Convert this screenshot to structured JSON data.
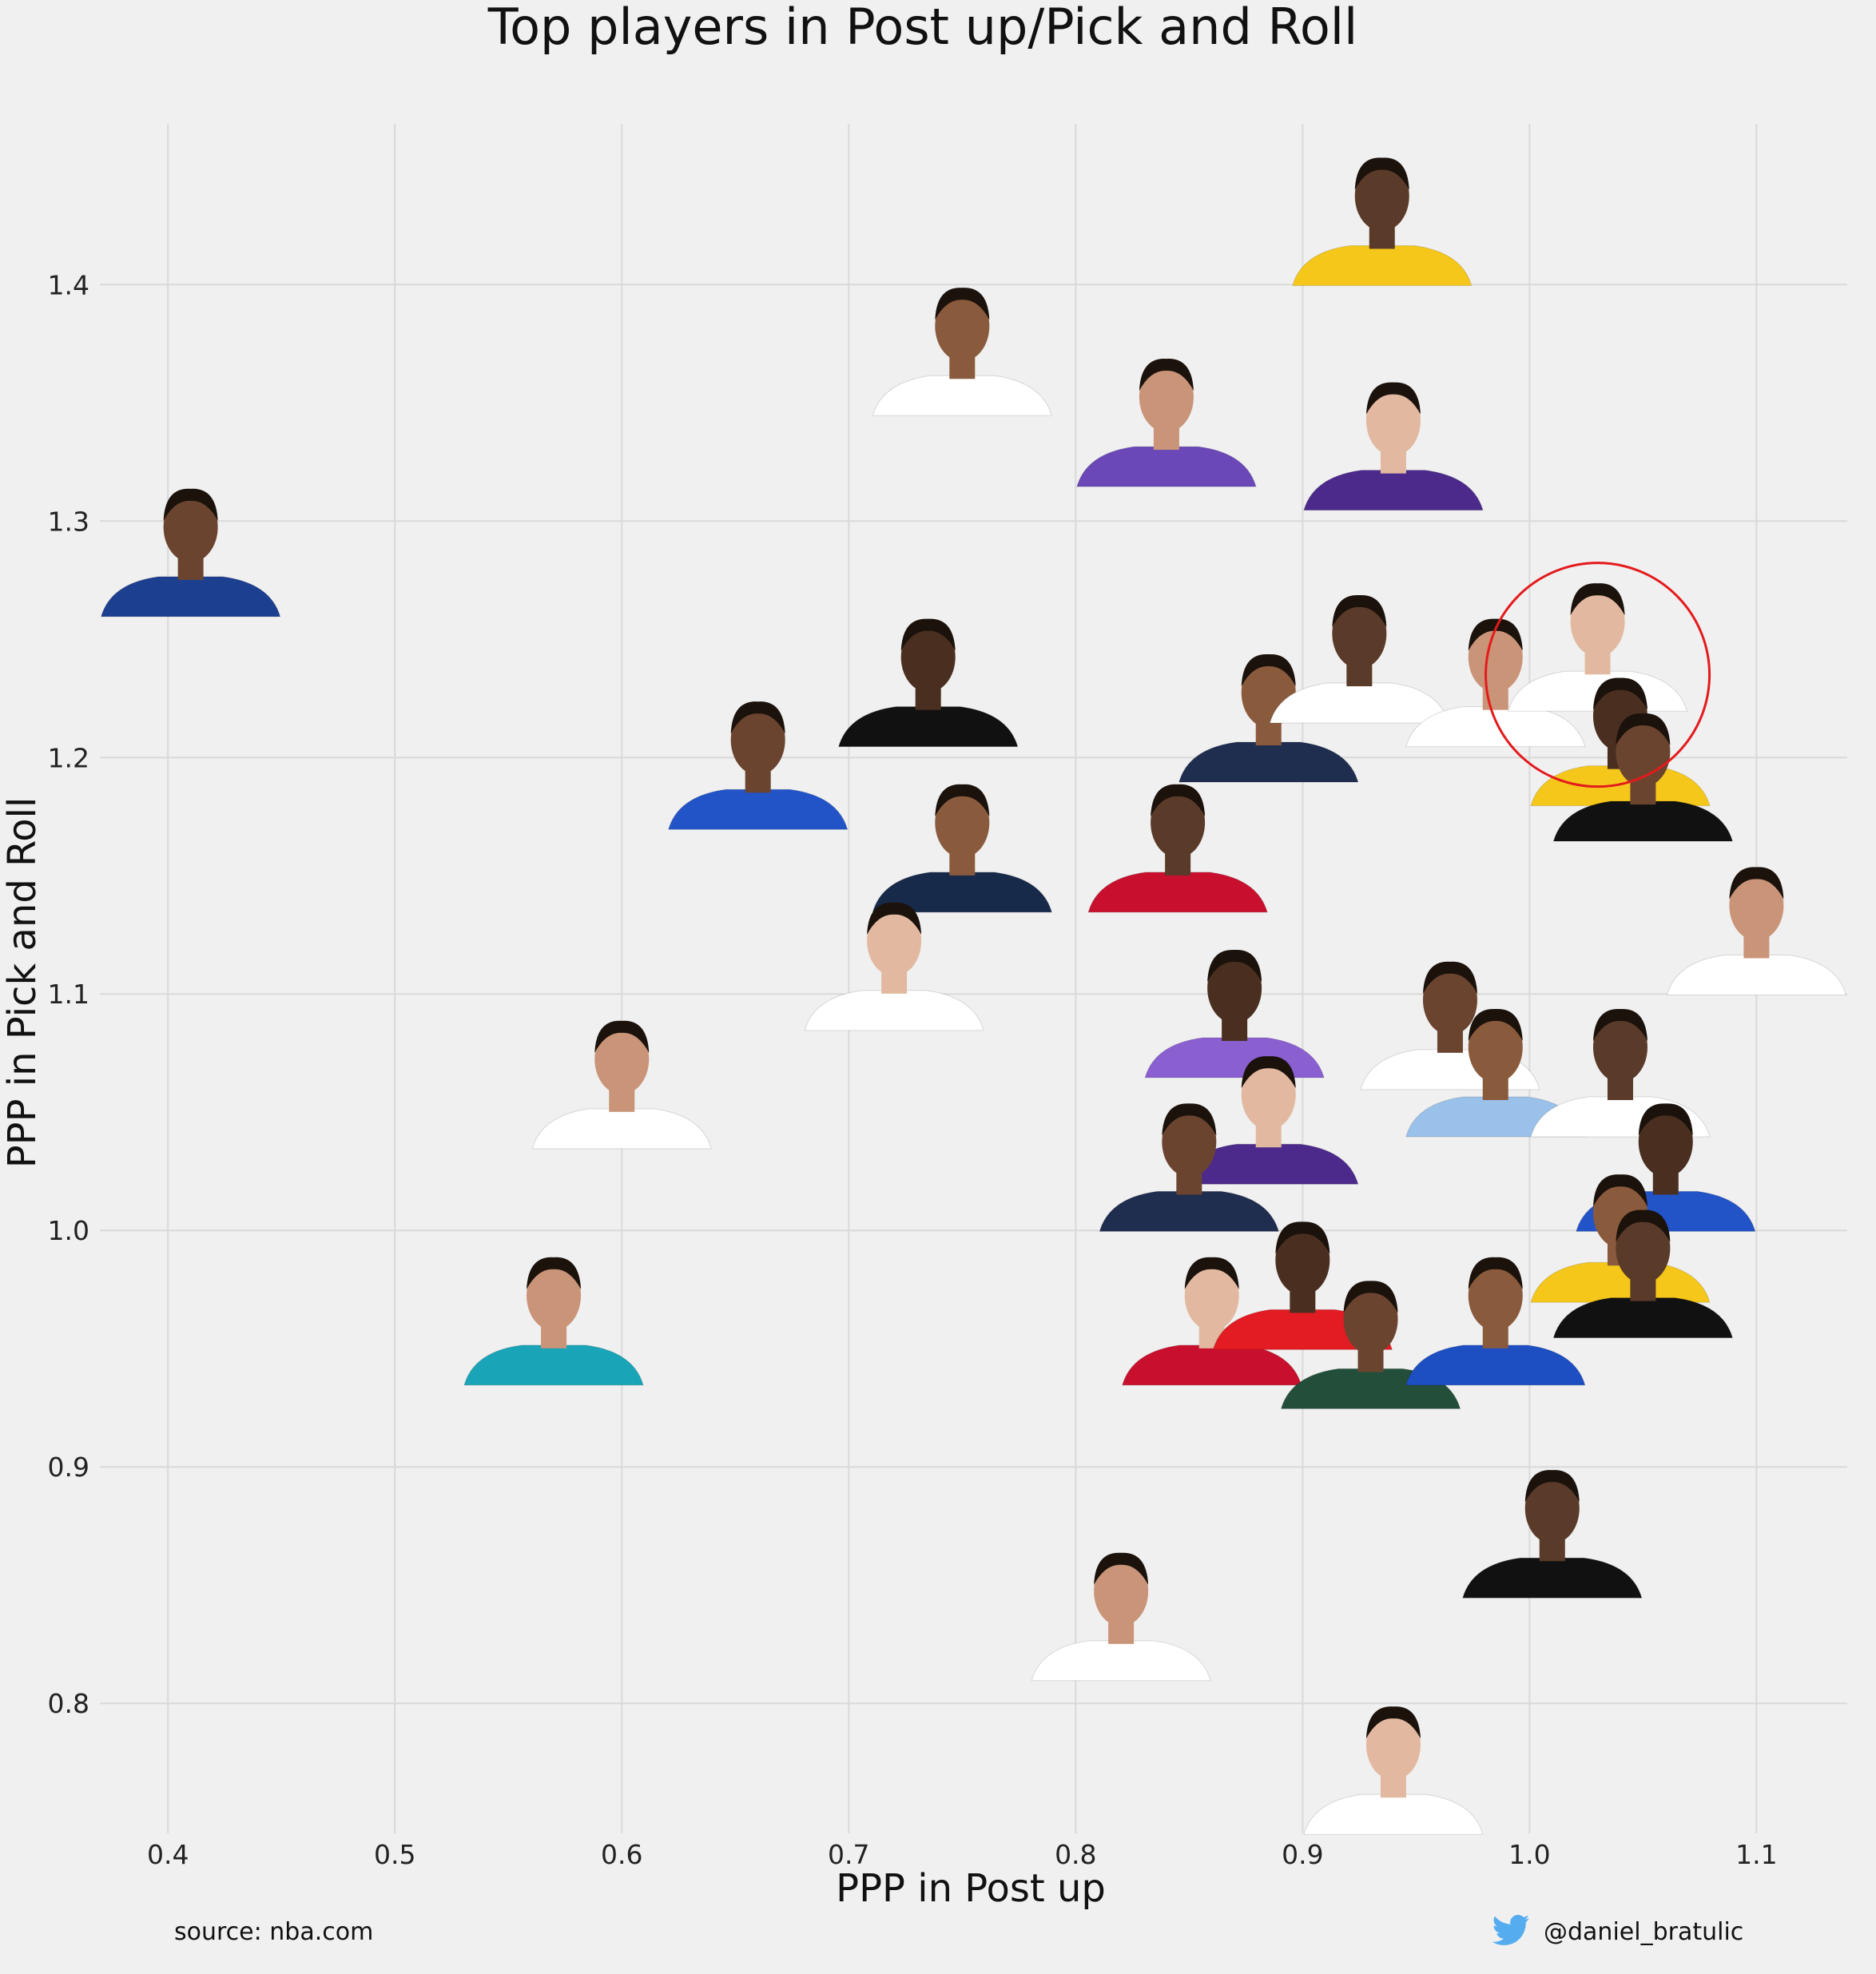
{
  "chart_data": {
    "type": "scatter",
    "title": "Top players in Post up/Pick and Roll",
    "xlabel": "PPP in Post up",
    "ylabel": "PPP in Pick and Roll",
    "xlim": [
      0.37,
      1.14
    ],
    "ylim": [
      0.745,
      1.468
    ],
    "xticks": [
      "0.4",
      "0.5",
      "0.6",
      "0.7",
      "0.8",
      "0.9",
      "1.0",
      "1.1"
    ],
    "yticks": [
      "0.8",
      "0.9",
      "1.0",
      "1.1",
      "1.2",
      "1.3",
      "1.4"
    ],
    "grid": true,
    "highlight": {
      "x": 1.03,
      "y": 1.235,
      "color": "#e41a1c"
    },
    "points": [
      {
        "x": 0.41,
        "y": 1.29,
        "jersey": "#1d3f8f"
      },
      {
        "x": 0.75,
        "y": 1.375,
        "jersey": "#ffffff"
      },
      {
        "x": 0.935,
        "y": 1.43,
        "jersey": "#f5c71a"
      },
      {
        "x": 0.84,
        "y": 1.345,
        "jersey": "#6a48b8"
      },
      {
        "x": 0.94,
        "y": 1.335,
        "jersey": "#4c2a8c"
      },
      {
        "x": 0.735,
        "y": 1.235,
        "jersey": "#111111"
      },
      {
        "x": 0.66,
        "y": 1.2,
        "jersey": "#2254c7"
      },
      {
        "x": 0.885,
        "y": 1.22,
        "jersey": "#1f2d4f"
      },
      {
        "x": 0.925,
        "y": 1.245,
        "jersey": "#ffffff"
      },
      {
        "x": 0.985,
        "y": 1.235,
        "jersey": "#ffffff"
      },
      {
        "x": 1.03,
        "y": 1.25,
        "jersey": "#ffffff"
      },
      {
        "x": 1.04,
        "y": 1.21,
        "jersey": "#f5c71a"
      },
      {
        "x": 1.05,
        "y": 1.195,
        "jersey": "#111111"
      },
      {
        "x": 0.75,
        "y": 1.165,
        "jersey": "#172a4a"
      },
      {
        "x": 0.845,
        "y": 1.165,
        "jersey": "#c8102e"
      },
      {
        "x": 1.1,
        "y": 1.13,
        "jersey": "#ffffff"
      },
      {
        "x": 0.72,
        "y": 1.115,
        "jersey": "#ffffff"
      },
      {
        "x": 0.87,
        "y": 1.095,
        "jersey": "#8a5fd0"
      },
      {
        "x": 0.965,
        "y": 1.09,
        "jersey": "#ffffff"
      },
      {
        "x": 0.985,
        "y": 1.07,
        "jersey": "#9ac1ea"
      },
      {
        "x": 1.04,
        "y": 1.07,
        "jersey": "#ffffff"
      },
      {
        "x": 0.6,
        "y": 1.065,
        "jersey": "#ffffff"
      },
      {
        "x": 0.885,
        "y": 1.05,
        "jersey": "#4c2a8c"
      },
      {
        "x": 1.06,
        "y": 1.03,
        "jersey": "#2254c7"
      },
      {
        "x": 0.85,
        "y": 1.03,
        "jersey": "#1f2d4f"
      },
      {
        "x": 1.04,
        "y": 1.0,
        "jersey": "#f5c71a"
      },
      {
        "x": 1.05,
        "y": 0.985,
        "jersey": "#111111"
      },
      {
        "x": 0.57,
        "y": 0.965,
        "jersey": "#1aa4b8"
      },
      {
        "x": 0.86,
        "y": 0.965,
        "jersey": "#c8102e"
      },
      {
        "x": 0.9,
        "y": 0.98,
        "jersey": "#e31b23"
      },
      {
        "x": 0.93,
        "y": 0.955,
        "jersey": "#234f3a"
      },
      {
        "x": 0.985,
        "y": 0.965,
        "jersey": "#1d4fc2"
      },
      {
        "x": 1.01,
        "y": 0.875,
        "jersey": "#111111"
      },
      {
        "x": 0.82,
        "y": 0.84,
        "jersey": "#ffffff"
      },
      {
        "x": 0.94,
        "y": 0.775,
        "jersey": "#ffffff"
      }
    ]
  },
  "footer": {
    "source": "source: nba.com",
    "handle": "@daniel_bratulic",
    "handle_icon": "twitter-bird-icon"
  }
}
